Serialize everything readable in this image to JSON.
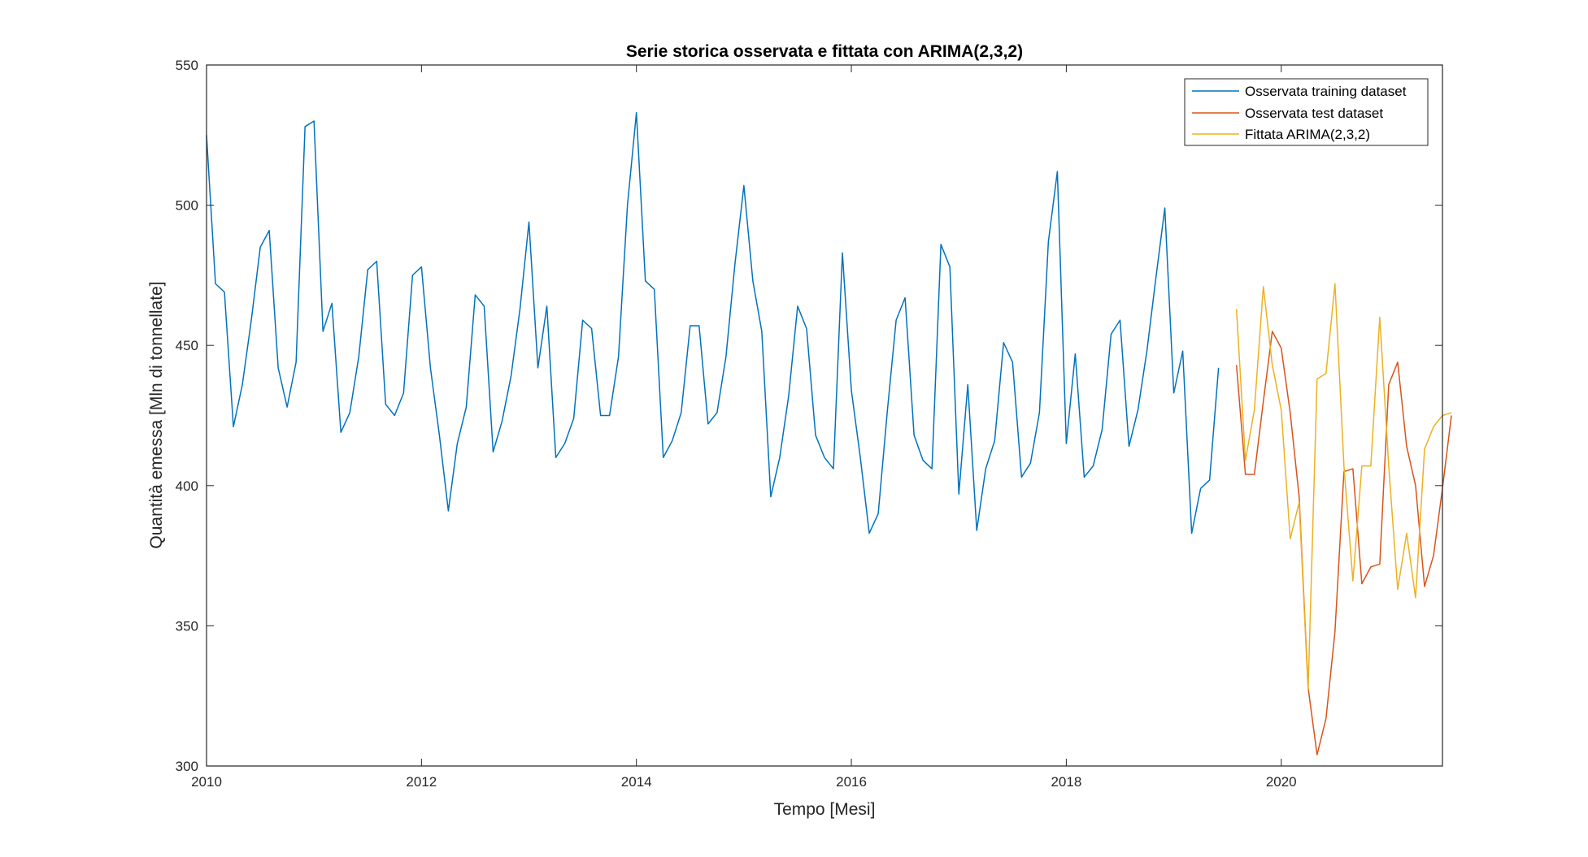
{
  "chart_data": {
    "type": "line",
    "title": "Serie storica osservata e fittata con ARIMA(2,3,2)",
    "xlabel": "Tempo [Mesi]",
    "ylabel": "Quantità emessa [Mln di tonnellate]",
    "xlim": [
      "2010-01",
      "2021-07"
    ],
    "ylim": [
      300,
      550
    ],
    "xticks": [
      "2010",
      "2012",
      "2014",
      "2016",
      "2018",
      "2020"
    ],
    "yticks": [
      "300",
      "350",
      "400",
      "450",
      "500",
      "550"
    ],
    "grid": false,
    "legend_position": "top-right",
    "series": [
      {
        "name": "Osservata training dataset",
        "color": "#0072BD",
        "start": "2010-01",
        "values": [
          525,
          472,
          469,
          421,
          436,
          459,
          485,
          491,
          442,
          428,
          444,
          528,
          530,
          455,
          465,
          419,
          426,
          446,
          477,
          480,
          429,
          425,
          433,
          475,
          478,
          442,
          418,
          391,
          415,
          428,
          468,
          464,
          412,
          423,
          439,
          463,
          494,
          442,
          464,
          410,
          415,
          424,
          459,
          456,
          425,
          425,
          446,
          500,
          533,
          473,
          470,
          410,
          416,
          426,
          457,
          457,
          422,
          426,
          446,
          479,
          507,
          473,
          455,
          396,
          410,
          432,
          464,
          456,
          418,
          410,
          406,
          483,
          434,
          410,
          383,
          390,
          426,
          459,
          467,
          418,
          409,
          406,
          486,
          478,
          397,
          436,
          384,
          406,
          416,
          451,
          444,
          403,
          408,
          426,
          487,
          512,
          415,
          447,
          403,
          407,
          420,
          454,
          459,
          414,
          427,
          448,
          474,
          499,
          433,
          448,
          383,
          399,
          402,
          442
        ]
      },
      {
        "name": "Osservata test dataset",
        "color": "#D95319",
        "start": "2019-08",
        "values": [
          443,
          404,
          404,
          430,
          455,
          449,
          426,
          396,
          328,
          304,
          317,
          348,
          405,
          406,
          365,
          371,
          372,
          436,
          444,
          414,
          400,
          364,
          375,
          399,
          425
        ]
      },
      {
        "name": "Fittata ARIMA(2,3,2)",
        "color": "#EDB120",
        "start": "2019-08",
        "values": [
          463,
          409,
          427,
          471,
          443,
          427,
          381,
          394,
          327,
          438,
          440,
          472,
          407,
          366,
          407,
          407,
          460,
          407,
          363,
          383,
          360,
          413,
          421,
          425,
          426
        ]
      }
    ]
  }
}
